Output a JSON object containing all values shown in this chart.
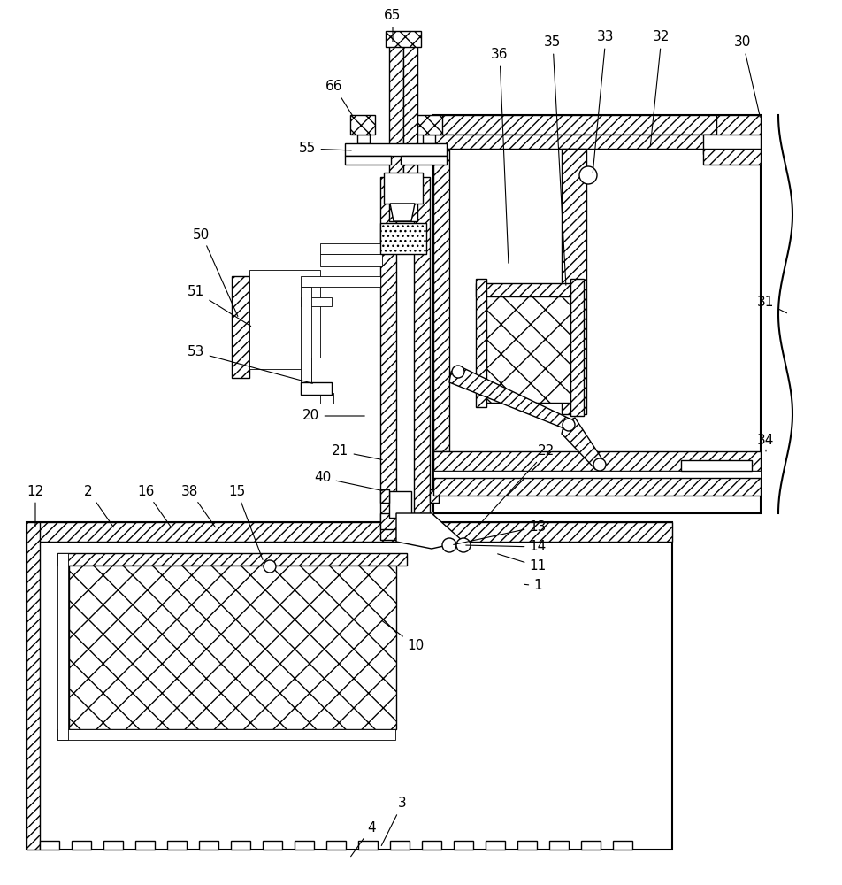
{
  "bg_color": "#ffffff",
  "lc": "#000000",
  "fig_width": 9.53,
  "fig_height": 10.0,
  "dpi": 100
}
